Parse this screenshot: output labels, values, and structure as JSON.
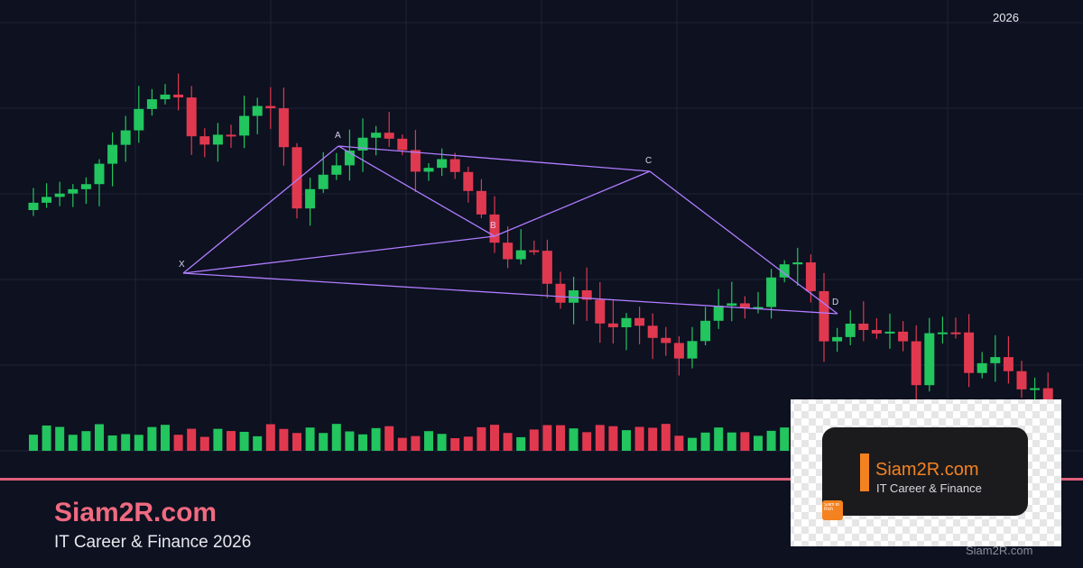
{
  "header": {
    "year": "2026"
  },
  "pattern": {
    "points": [
      "X",
      "A",
      "B",
      "C",
      "D"
    ]
  },
  "footer": {
    "title": "Siam2R.com",
    "subtitle": "IT Career & Finance 2026",
    "watermark": "Siam2R.com"
  },
  "logo": {
    "title": "Siam2R.com",
    "tagline": "IT Career & Finance",
    "badge": "Siam to Rich"
  }
}
